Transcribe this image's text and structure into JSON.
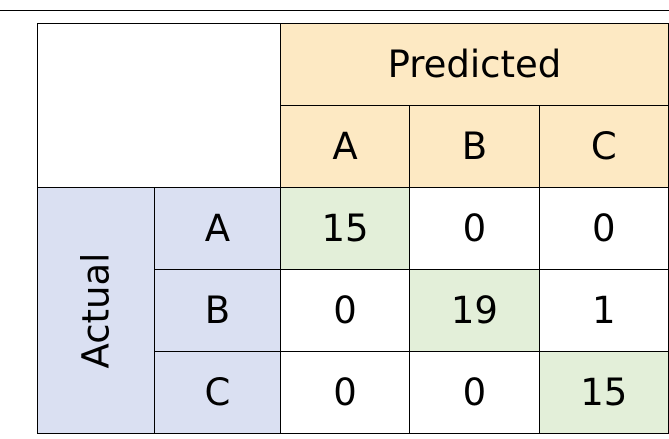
{
  "chart_data": {
    "type": "table",
    "col_group_label": "Predicted",
    "row_group_label": "Actual",
    "categories": [
      "A",
      "B",
      "C"
    ],
    "matrix": [
      [
        15,
        0,
        0
      ],
      [
        0,
        19,
        1
      ],
      [
        0,
        0,
        15
      ]
    ]
  },
  "colors": {
    "predicted_header": "#fde9c3",
    "actual_header": "#dae0f2",
    "diagonal": "#e3efd9",
    "cell": "#ffffff",
    "border": "#000000"
  }
}
